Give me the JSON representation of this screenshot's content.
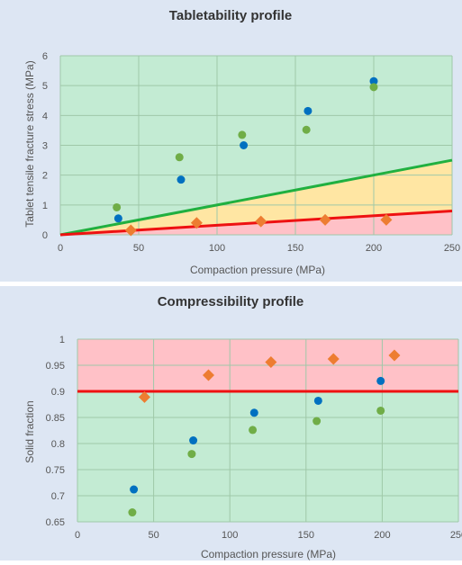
{
  "chart_data": [
    {
      "type": "scatter",
      "title": "Tabletability profile",
      "xlabel": "Compaction pressure (MPa)",
      "ylabel": "Tablet tensile fracture stress (MPa)",
      "xlim": [
        0,
        250
      ],
      "ylim": [
        0,
        6
      ],
      "xticks": [
        0,
        50,
        100,
        150,
        200,
        250
      ],
      "yticks": [
        0,
        1,
        2,
        3,
        4,
        5,
        6
      ],
      "grid": true,
      "lines": [
        {
          "color": "#20b040",
          "points": [
            [
              0,
              0
            ],
            [
              250,
              2.5
            ]
          ]
        },
        {
          "color": "#ee1111",
          "points": [
            [
              0,
              0
            ],
            [
              250,
              0.8
            ]
          ]
        }
      ],
      "series": [
        {
          "color": "#0070c0",
          "marker": "circle",
          "x": [
            37,
            77,
            117,
            158,
            200
          ],
          "y": [
            0.55,
            1.85,
            3.0,
            4.15,
            5.15
          ]
        },
        {
          "color": "#70ad47",
          "marker": "circle",
          "x": [
            36,
            76,
            116,
            157,
            200
          ],
          "y": [
            0.92,
            2.6,
            3.35,
            3.52,
            4.95
          ]
        },
        {
          "color": "#ed7d31",
          "marker": "diamond",
          "x": [
            45,
            87,
            128,
            169,
            208
          ],
          "y": [
            0.15,
            0.4,
            0.45,
            0.5,
            0.5
          ]
        }
      ],
      "regions": [
        {
          "color": "#c3ebd3",
          "label": "above green line"
        },
        {
          "color": "#ffe6a3",
          "label": "between lines"
        },
        {
          "color": "#ffc1c7",
          "label": "below red line"
        }
      ]
    },
    {
      "type": "scatter",
      "title": "Compressibility profile",
      "xlabel": "Compaction pressure (MPa)",
      "ylabel": "Solid fraction",
      "xlim": [
        0,
        250
      ],
      "ylim": [
        0.65,
        1
      ],
      "xticks": [
        0,
        50,
        100,
        150,
        200,
        250
      ],
      "yticks": [
        0.65,
        0.7,
        0.75,
        0.8,
        0.85,
        0.9,
        0.95,
        1
      ],
      "grid": true,
      "threshold": {
        "value": 0.9,
        "color": "#ee1111"
      },
      "series": [
        {
          "color": "#0070c0",
          "marker": "circle",
          "x": [
            37,
            76,
            116,
            158,
            199
          ],
          "y": [
            0.712,
            0.806,
            0.859,
            0.882,
            0.92
          ]
        },
        {
          "color": "#70ad47",
          "marker": "circle",
          "x": [
            36,
            75,
            115,
            157,
            199
          ],
          "y": [
            0.668,
            0.78,
            0.826,
            0.843,
            0.863
          ]
        },
        {
          "color": "#ed7d31",
          "marker": "diamond",
          "x": [
            44,
            86,
            127,
            168,
            208
          ],
          "y": [
            0.889,
            0.931,
            0.956,
            0.962,
            0.969
          ]
        }
      ],
      "regions": [
        {
          "color": "#ffc1c7",
          "label": "above red line"
        },
        {
          "color": "#c3ebd3",
          "label": "below red line"
        }
      ]
    }
  ]
}
